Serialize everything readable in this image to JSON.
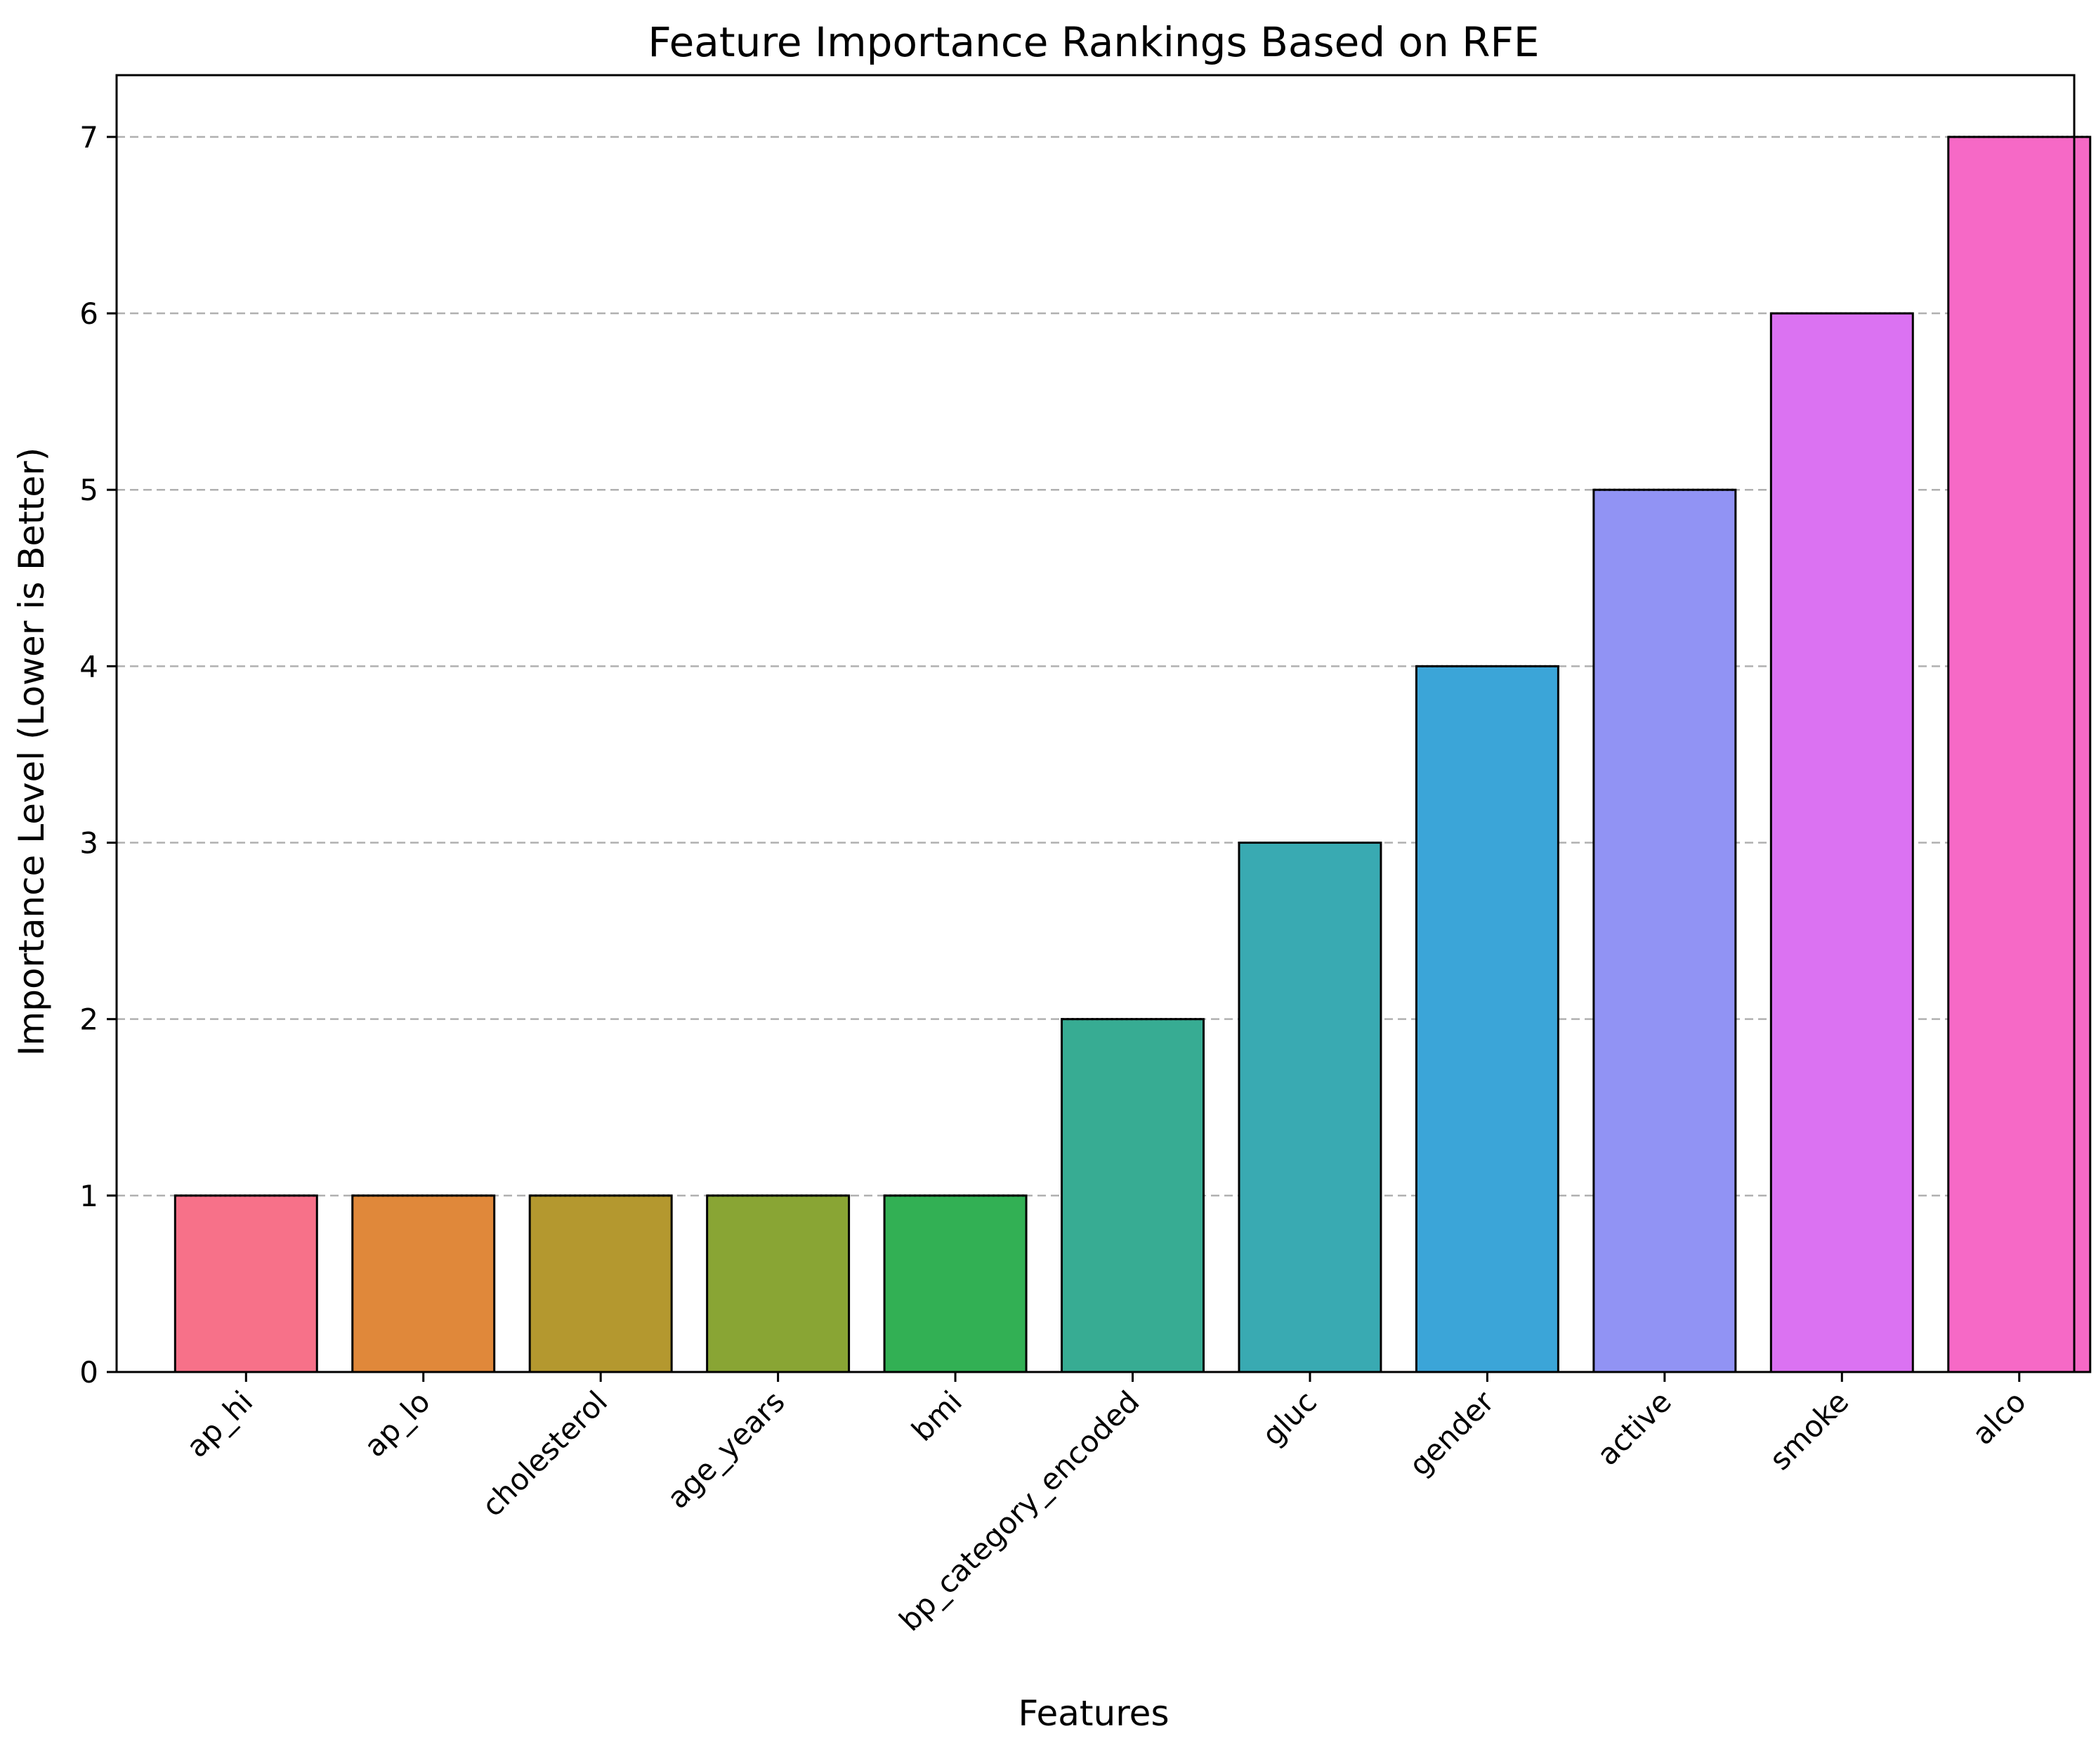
{
  "chart_data": {
    "type": "bar",
    "title": "Feature Importance Rankings Based on RFE",
    "xlabel": "Features",
    "ylabel": "Importance Level (Lower is Better)",
    "categories": [
      "ap_hi",
      "ap_lo",
      "cholesterol",
      "age_years",
      "bmi",
      "bp_category_encoded",
      "gluc",
      "gender",
      "active",
      "smoke",
      "alco"
    ],
    "values": [
      1,
      1,
      1,
      1,
      1,
      2,
      3,
      4,
      5,
      6,
      7
    ],
    "colors": [
      "#f77189",
      "#e0883a",
      "#b4982f",
      "#89a534",
      "#32b054",
      "#37ac93",
      "#39aab2",
      "#3ba5d8",
      "#9193f4",
      "#db72f2",
      "#f669c6"
    ],
    "ylim": [
      0,
      7.35
    ],
    "yticks": [
      0,
      1,
      2,
      3,
      4,
      5,
      6,
      7
    ],
    "grid": "y-dashed",
    "legend": "none"
  }
}
